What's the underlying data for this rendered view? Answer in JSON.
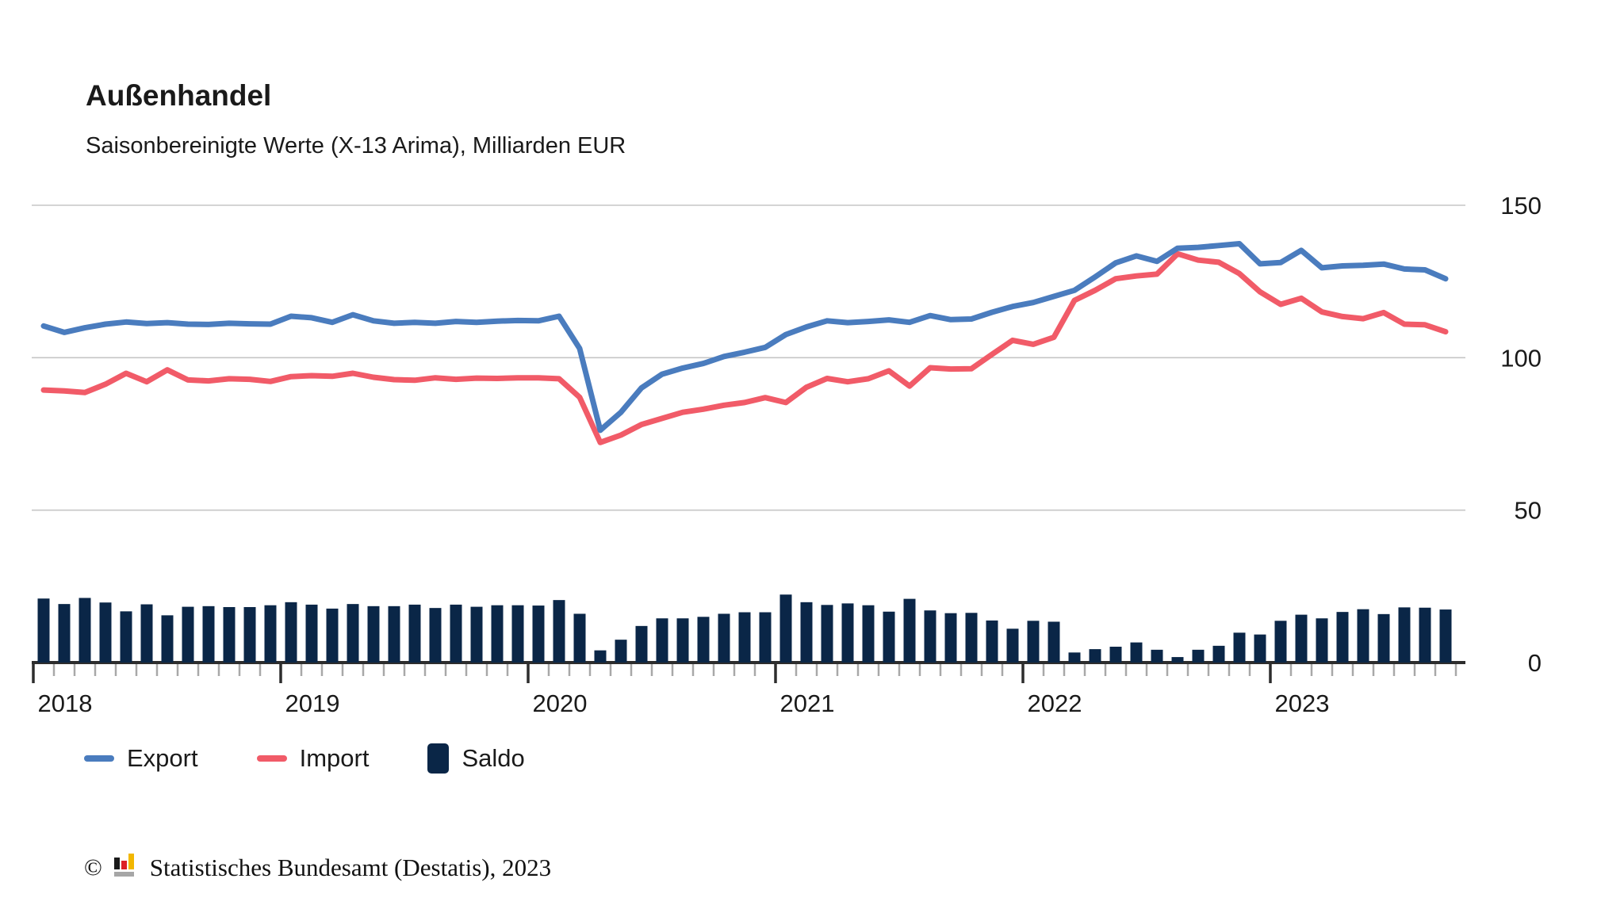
{
  "header": {
    "title": "Außenhandel",
    "subtitle": "Saisonbereinigte Werte (X-13 Arima), Milliarden EUR"
  },
  "legend": [
    {
      "label": "Export",
      "color": "#4a7cbe",
      "swatch": "line"
    },
    {
      "label": "Import",
      "color": "#f15b68",
      "swatch": "line"
    },
    {
      "label": "Saldo",
      "color": "#0a2647",
      "swatch": "bar"
    }
  ],
  "footer": {
    "copyright": "©",
    "source": "Statistisches Bundesamt (Destatis), 2023",
    "logo_icon": "destatis-bar-chart-icon",
    "logo_colors": {
      "black": "#1a1a1a",
      "red": "#dd1f26",
      "gold": "#f2b700",
      "base_gray": "#a6a6a6"
    }
  },
  "colors": {
    "export_line": "#4a7cbe",
    "import_line": "#f15b68",
    "saldo_bar": "#0a2647",
    "gridline": "#c6c6c6",
    "axis": "#2d2d2d",
    "minor_tick": "#a8a8a8",
    "text": "#1a1a1a",
    "background": "#ffffff"
  },
  "chart_data": {
    "type": "line+bar",
    "title": "Außenhandel",
    "subtitle": "Saisonbereinigte Werte (X-13 Arima), Milliarden EUR",
    "unit": "Milliarden EUR",
    "x_start": "2018-01",
    "x_end": "2023-09",
    "months_total": 69,
    "year_labels": [
      "2018",
      "2019",
      "2020",
      "2021",
      "2022",
      "2023"
    ],
    "y_ticks": [
      150,
      100,
      50,
      0
    ],
    "ylim": [
      0,
      150
    ],
    "grid": "horizontal",
    "legend_position": "bottom-left",
    "series": [
      {
        "name": "Export",
        "type": "line",
        "color": "#4a7cbe",
        "values": [
          110.4,
          108.3,
          109.8,
          111.0,
          111.7,
          111.2,
          111.5,
          111.0,
          110.9,
          111.3,
          111.1,
          111.0,
          113.6,
          113.1,
          111.6,
          114.1,
          112.1,
          111.3,
          111.6,
          111.3,
          111.9,
          111.6,
          112.0,
          112.2,
          112.1,
          113.6,
          103.0,
          76.2,
          82.1,
          90.1,
          94.6,
          96.6,
          98.1,
          100.4,
          101.8,
          103.4,
          107.6,
          110.1,
          112.1,
          111.5,
          111.9,
          112.4,
          111.6,
          113.8,
          112.5,
          112.7,
          114.9,
          116.8,
          118.1,
          120.1,
          122.1,
          126.5,
          131.1,
          133.4,
          131.6,
          135.9,
          136.2,
          136.8,
          137.4,
          130.8,
          131.2,
          135.2,
          129.5,
          130.1,
          130.3,
          130.7,
          129.1,
          128.8,
          125.9
        ]
      },
      {
        "name": "Import",
        "type": "line",
        "color": "#f15b68",
        "values": [
          89.4,
          89.1,
          88.6,
          91.3,
          94.9,
          92.1,
          96.0,
          92.7,
          92.4,
          93.1,
          92.9,
          92.2,
          93.8,
          94.1,
          93.9,
          94.9,
          93.6,
          92.8,
          92.6,
          93.4,
          92.9,
          93.3,
          93.2,
          93.4,
          93.4,
          93.1,
          87.0,
          72.2,
          74.6,
          78.1,
          80.1,
          82.1,
          83.1,
          84.4,
          85.3,
          86.9,
          85.3,
          90.3,
          93.2,
          92.1,
          93.1,
          95.7,
          90.7,
          96.7,
          96.3,
          96.4,
          101.1,
          105.7,
          104.4,
          106.7,
          118.8,
          122.1,
          125.9,
          126.8,
          127.4,
          134.1,
          132.0,
          131.3,
          127.6,
          121.6,
          117.5,
          119.5,
          115.0,
          113.5,
          112.8,
          114.8,
          111.0,
          110.8,
          108.5
        ]
      },
      {
        "name": "Saldo",
        "type": "bar",
        "color": "#0a2647",
        "values": [
          21.0,
          19.2,
          21.2,
          19.7,
          16.8,
          19.1,
          15.5,
          18.3,
          18.5,
          18.2,
          18.2,
          18.8,
          19.8,
          19.0,
          17.7,
          19.2,
          18.5,
          18.5,
          19.0,
          17.9,
          19.0,
          18.3,
          18.8,
          18.8,
          18.7,
          20.5,
          16.0,
          4.0,
          7.5,
          12.0,
          14.5,
          14.5,
          15.0,
          16.0,
          16.5,
          16.5,
          22.3,
          19.8,
          18.9,
          19.4,
          18.8,
          16.7,
          20.9,
          17.1,
          16.2,
          16.3,
          13.8,
          11.1,
          13.7,
          13.4,
          3.3,
          4.4,
          5.2,
          6.6,
          4.2,
          1.8,
          4.2,
          5.5,
          9.8,
          9.2,
          13.7,
          15.7,
          14.5,
          16.6,
          17.5,
          15.9,
          18.1,
          18.0,
          17.4
        ]
      }
    ]
  }
}
